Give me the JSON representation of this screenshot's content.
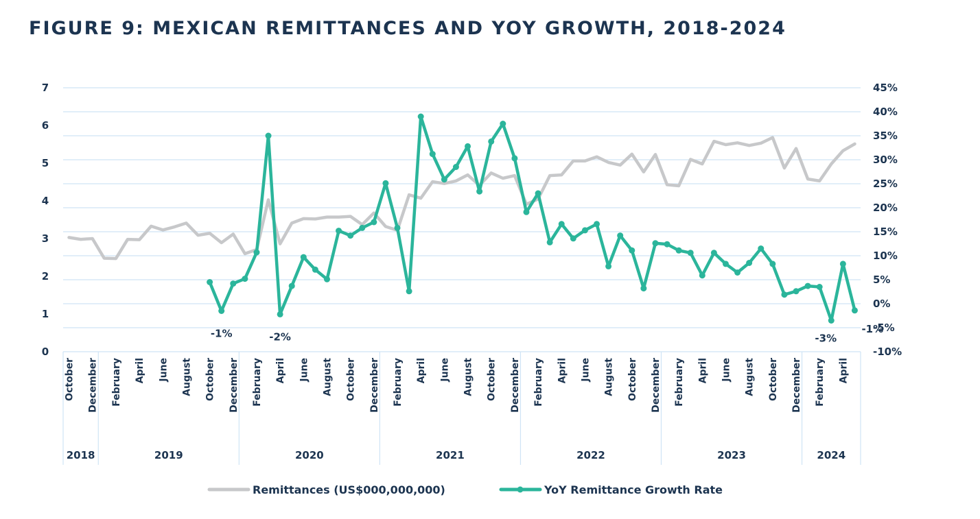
{
  "title": "FIGURE 9: MEXICAN REMITTANCES AND YOY GROWTH, 2018-2024",
  "colors": {
    "remittances": "#c7c8ca",
    "growth": "#2bb59b",
    "grid": "#cfe4f5",
    "text": "#1c3450"
  },
  "chart_data": {
    "type": "line",
    "title": "FIGURE 9: MEXICAN REMITTANCES AND YOY GROWTH, 2018-2024",
    "left_axis": {
      "ylim": [
        0,
        7
      ],
      "ticks": [
        "0",
        "1",
        "2",
        "3",
        "4",
        "5",
        "6",
        "7"
      ]
    },
    "right_axis": {
      "ylim": [
        -10,
        45
      ],
      "ticks": [
        "-10%",
        "-5%",
        "0%",
        "5%",
        "10%",
        "15%",
        "20%",
        "25%",
        "30%",
        "35%",
        "40%",
        "45%"
      ]
    },
    "x_tick_labels": [
      "October",
      "December",
      "February",
      "April",
      "June",
      "August",
      "October",
      "December",
      "February",
      "April",
      "June",
      "August",
      "October",
      "December",
      "February",
      "April",
      "June",
      "August",
      "October",
      "December",
      "February",
      "April",
      "June",
      "August",
      "October",
      "December",
      "February",
      "April",
      "June",
      "August",
      "October",
      "December",
      "February",
      "April"
    ],
    "years": [
      {
        "label": "2018",
        "months": 3
      },
      {
        "label": "2019",
        "months": 12
      },
      {
        "label": "2020",
        "months": 12
      },
      {
        "label": "2021",
        "months": 12
      },
      {
        "label": "2022",
        "months": 12
      },
      {
        "label": "2023",
        "months": 12
      },
      {
        "label": "2024",
        "months": 5
      }
    ],
    "series": [
      {
        "name": "Remittances (US$000,000,000)",
        "axis": "left",
        "values": [
          3.03,
          2.98,
          3.0,
          2.48,
          2.47,
          2.98,
          2.97,
          3.33,
          3.23,
          3.31,
          3.41,
          3.09,
          3.14,
          2.89,
          3.12,
          2.6,
          2.71,
          4.03,
          2.86,
          3.41,
          3.53,
          3.52,
          3.57,
          3.57,
          3.59,
          3.37,
          3.68,
          3.32,
          3.22,
          4.16,
          4.07,
          4.51,
          4.46,
          4.53,
          4.69,
          4.41,
          4.74,
          4.6,
          4.67,
          3.91,
          4.05,
          4.67,
          4.69,
          5.06,
          5.06,
          5.17,
          5.02,
          4.95,
          5.24,
          4.77,
          5.23,
          4.43,
          4.4,
          5.1,
          4.98,
          5.58,
          5.49,
          5.54,
          5.47,
          5.53,
          5.68,
          4.87,
          5.39,
          4.58,
          4.53,
          4.98,
          5.33,
          5.51
        ]
      },
      {
        "name": "YoY Remittance Growth Rate",
        "axis": "right",
        "values": [
          null,
          null,
          null,
          null,
          null,
          null,
          null,
          null,
          null,
          null,
          null,
          null,
          4.5,
          -1.5,
          4.2,
          5.2,
          10.7,
          35,
          -2.2,
          3.7,
          9.7,
          7.1,
          5.1,
          15.2,
          14.2,
          15.8,
          17.0,
          25.1,
          15.8,
          2.6,
          39,
          31.2,
          25.9,
          28.5,
          32.8,
          23.4,
          33.8,
          37.5,
          30.3,
          19.1,
          23.0,
          12.8,
          16.6,
          13.6,
          15.3,
          16.6,
          7.8,
          14.2,
          11.1,
          3.2,
          12.6,
          12.4,
          11.1,
          10.6,
          5.9,
          10.6,
          8.3,
          6.5,
          8.5,
          11.5,
          8.3,
          1.9,
          2.6,
          3.7,
          3.5,
          -3.5,
          8.3,
          -1.4
        ]
      }
    ],
    "annotations": [
      {
        "text": "-1%",
        "index": 13
      },
      {
        "text": "-2%",
        "index": 18
      },
      {
        "text": "-3%",
        "index": 65
      },
      {
        "text": "-1%",
        "index": 67
      }
    ],
    "legend": {
      "position": "bottom",
      "entries": [
        "Remittances (US$000,000,000)",
        "YoY Remittance Growth Rate"
      ]
    }
  }
}
